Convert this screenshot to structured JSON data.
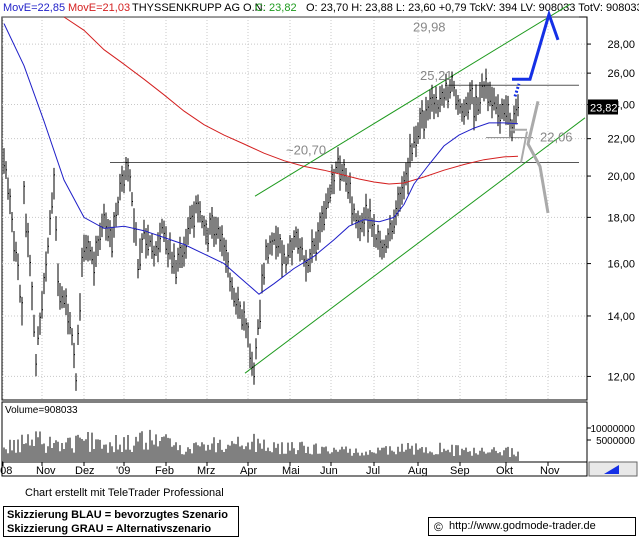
{
  "header": {
    "ma1": "MovE=22,85",
    "ma2": "MovE=21,03",
    "name": "THYSSENKRUPP AG O.N.",
    "close": "C: 23,82",
    "rest": "O: 23,70  H: 23,88  L: 23,60 +0,79  TckV:  394  LV: 908033  TotV: 908033"
  },
  "colors": {
    "price": "#000000",
    "ma_short": "#1f1fc8",
    "ma_long": "#d42020",
    "channel": "#1e9a1e",
    "scenario_blue": "#1530e6",
    "scenario_grey": "#aaaaaa",
    "grid": "#c8c8c8",
    "resistance": "#000000"
  },
  "chart_data": {
    "type": "line",
    "instrument": "THYSSENKRUPP AG O.N.",
    "y_axis": {
      "ylim": [
        11.3,
        30.0
      ],
      "ticks": [
        "12,00",
        "14,00",
        "16,00",
        "18,00",
        "20,00",
        "22,00",
        "24,00",
        "26,00",
        "28,00"
      ],
      "scale": "log",
      "position": "right"
    },
    "x_axis": {
      "labels": [
        "'08",
        "Nov",
        "Dez",
        "'09",
        "Feb",
        "Mrz",
        "Apr",
        "Mai",
        "Jun",
        "Jul",
        "Aug",
        "Sep",
        "Okt",
        "Nov"
      ]
    },
    "grid": true,
    "last_price": "23,82",
    "price_anchors": [
      [
        0,
        21.0
      ],
      [
        18,
        14.0
      ],
      [
        20,
        19.0
      ],
      [
        32,
        12.5
      ],
      [
        42,
        15.8
      ],
      [
        50,
        19.5
      ],
      [
        55,
        14.8
      ],
      [
        66,
        14.0
      ],
      [
        72,
        11.9
      ],
      [
        80,
        17.0
      ],
      [
        90,
        16.0
      ],
      [
        100,
        18.0
      ],
      [
        108,
        17.0
      ],
      [
        118,
        19.6
      ],
      [
        124,
        20.2
      ],
      [
        128,
        19.0
      ],
      [
        134,
        16.0
      ],
      [
        140,
        17.5
      ],
      [
        150,
        16.5
      ],
      [
        158,
        17.5
      ],
      [
        172,
        15.8
      ],
      [
        182,
        17.0
      ],
      [
        192,
        18.5
      ],
      [
        202,
        17.2
      ],
      [
        212,
        17.8
      ],
      [
        222,
        16.0
      ],
      [
        232,
        14.5
      ],
      [
        242,
        13.5
      ],
      [
        250,
        12.2
      ],
      [
        256,
        14.3
      ],
      [
        262,
        16.5
      ],
      [
        272,
        17.2
      ],
      [
        282,
        16.0
      ],
      [
        292,
        17.2
      ],
      [
        302,
        15.8
      ],
      [
        312,
        16.8
      ],
      [
        322,
        18.5
      ],
      [
        332,
        20.5
      ],
      [
        340,
        20.3
      ],
      [
        346,
        19.0
      ],
      [
        354,
        17.5
      ],
      [
        362,
        18.2
      ],
      [
        370,
        17.2
      ],
      [
        378,
        16.4
      ],
      [
        386,
        17.3
      ],
      [
        394,
        18.5
      ],
      [
        402,
        19.8
      ],
      [
        410,
        22.0
      ],
      [
        418,
        23.0
      ],
      [
        426,
        23.8
      ],
      [
        434,
        24.0
      ],
      [
        442,
        24.6
      ],
      [
        448,
        25.1
      ],
      [
        454,
        24.3
      ],
      [
        460,
        23.5
      ],
      [
        466,
        24.5
      ],
      [
        472,
        23.8
      ],
      [
        478,
        25.0
      ],
      [
        484,
        24.8
      ],
      [
        490,
        24.5
      ],
      [
        496,
        23.6
      ],
      [
        502,
        23.8
      ],
      [
        507,
        22.5
      ],
      [
        511,
        23.0
      ],
      [
        514,
        23.82
      ]
    ],
    "ma_short": [
      [
        0,
        29.5
      ],
      [
        20,
        26.5
      ],
      [
        40,
        23.0
      ],
      [
        60,
        19.8
      ],
      [
        80,
        18.0
      ],
      [
        100,
        17.5
      ],
      [
        120,
        17.6
      ],
      [
        140,
        17.4
      ],
      [
        160,
        17.1
      ],
      [
        180,
        16.8
      ],
      [
        200,
        16.4
      ],
      [
        220,
        16.0
      ],
      [
        240,
        15.3
      ],
      [
        255,
        14.8
      ],
      [
        270,
        15.2
      ],
      [
        290,
        15.8
      ],
      [
        310,
        16.3
      ],
      [
        330,
        17.0
      ],
      [
        345,
        17.6
      ],
      [
        360,
        17.9
      ],
      [
        375,
        17.8
      ],
      [
        390,
        18.0
      ],
      [
        400,
        18.6
      ],
      [
        410,
        19.6
      ],
      [
        425,
        20.6
      ],
      [
        440,
        21.6
      ],
      [
        455,
        22.2
      ],
      [
        470,
        22.6
      ],
      [
        485,
        22.9
      ],
      [
        500,
        22.9
      ],
      [
        514,
        22.85
      ]
    ],
    "ma_long": [
      [
        60,
        30.0
      ],
      [
        80,
        29.0
      ],
      [
        100,
        27.6
      ],
      [
        120,
        26.6
      ],
      [
        140,
        25.6
      ],
      [
        160,
        24.6
      ],
      [
        180,
        23.6
      ],
      [
        200,
        22.8
      ],
      [
        220,
        22.2
      ],
      [
        240,
        21.7
      ],
      [
        260,
        21.2
      ],
      [
        280,
        20.8
      ],
      [
        300,
        20.5
      ],
      [
        320,
        20.3
      ],
      [
        340,
        20.05
      ],
      [
        355,
        19.85
      ],
      [
        370,
        19.7
      ],
      [
        385,
        19.6
      ],
      [
        400,
        19.65
      ],
      [
        420,
        19.95
      ],
      [
        440,
        20.3
      ],
      [
        460,
        20.6
      ],
      [
        480,
        20.85
      ],
      [
        500,
        21.0
      ],
      [
        514,
        21.03
      ]
    ],
    "levels": [
      {
        "label": "29,98",
        "value": 29.98
      },
      {
        "label": "25,21",
        "value": 25.21
      },
      {
        "label": "~20,70",
        "value": 20.7
      },
      {
        "label": "22,06",
        "value": 22.06
      }
    ],
    "channel_lower": [
      [
        245,
        12.1
      ],
      [
        585,
        23.2
      ]
    ],
    "channel_upper": [
      [
        255,
        19.0
      ],
      [
        570,
        31.0
      ]
    ],
    "scenario_blue": [
      [
        512,
        25.6
      ],
      [
        530,
        25.6
      ],
      [
        549,
        30.2
      ],
      [
        558,
        28.3
      ]
    ],
    "scenario_grey": [
      [
        538,
        24.2
      ],
      [
        528,
        21.7
      ],
      [
        540,
        20.5
      ],
      [
        548,
        18.2
      ]
    ],
    "grey_tick": [
      [
        510,
        22.5
      ],
      [
        527,
        22.5
      ]
    ],
    "grey_hook": [
      [
        521,
        20.7
      ],
      [
        527,
        22.4
      ]
    ],
    "volume_panel": {
      "label": "Volume=908033",
      "ticks": [
        "5000000",
        "10000000"
      ]
    },
    "volume_envelope": [
      [
        0,
        0.35
      ],
      [
        30,
        0.55
      ],
      [
        60,
        0.45
      ],
      [
        90,
        0.55
      ],
      [
        120,
        0.45
      ],
      [
        150,
        0.6
      ],
      [
        180,
        0.35
      ],
      [
        210,
        0.45
      ],
      [
        240,
        0.55
      ],
      [
        270,
        0.35
      ],
      [
        300,
        0.35
      ],
      [
        330,
        0.3
      ],
      [
        360,
        0.25
      ],
      [
        390,
        0.3
      ],
      [
        420,
        0.35
      ],
      [
        450,
        0.3
      ],
      [
        480,
        0.25
      ],
      [
        510,
        0.25
      ]
    ]
  },
  "footer": {
    "created": "Chart erstellt mit TeleTrader Professional",
    "scenario_blue": "Skizzierung BLAU = bevorzugtes Szenario",
    "scenario_grey": "Skizzierung GRAU = Alternativszenario",
    "url_icon": "©",
    "url": "http://www.godmode-trader.de"
  }
}
